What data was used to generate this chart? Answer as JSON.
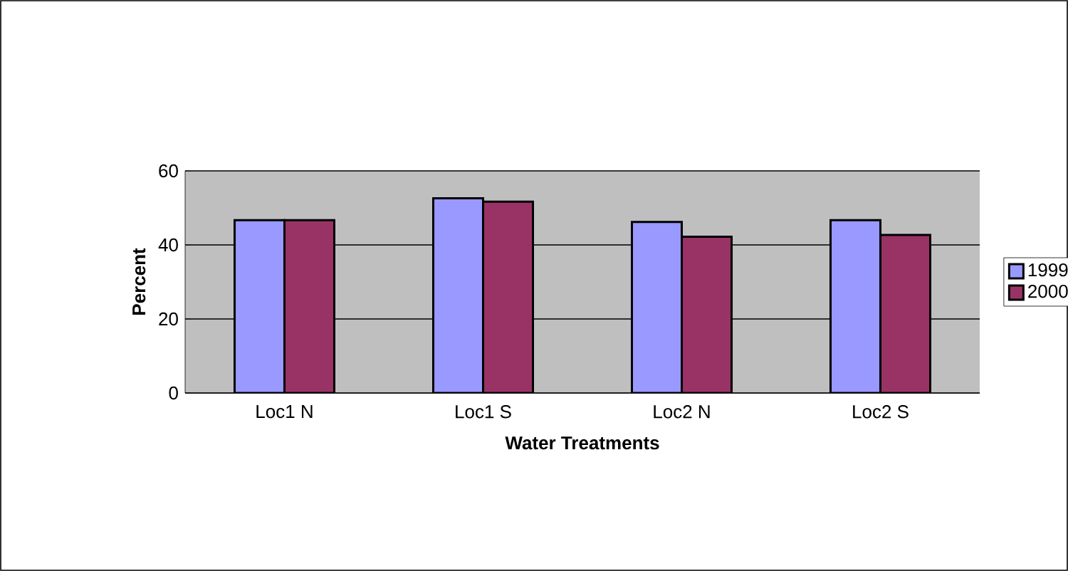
{
  "chart_data": {
    "type": "bar",
    "xlabel": "Water Treatments",
    "ylabel": "Percent",
    "categories": [
      "Loc1 N",
      "Loc1 S",
      "Loc2 N",
      "Loc2 S"
    ],
    "series": [
      {
        "name": "1999",
        "color": "#9999ff",
        "values": [
          46.7,
          52.6,
          46.2,
          46.7
        ]
      },
      {
        "name": "2000",
        "color": "#993366",
        "values": [
          46.7,
          51.7,
          42.2,
          42.7
        ]
      }
    ],
    "ylim": [
      0,
      60
    ],
    "yticks": [
      0,
      20,
      40,
      60
    ],
    "grid": "y",
    "legend": "right"
  }
}
